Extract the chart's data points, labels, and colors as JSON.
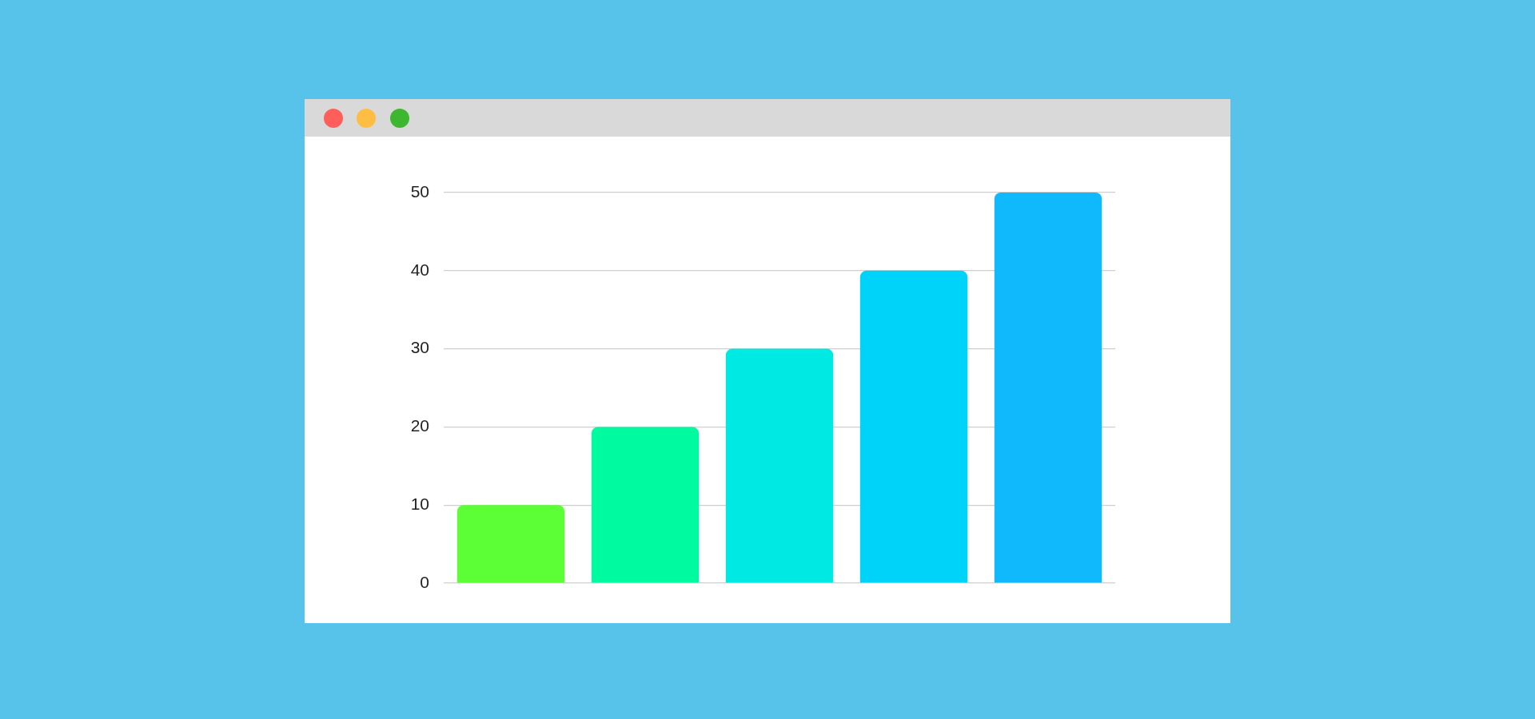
{
  "chart_data": {
    "type": "bar",
    "categories": [
      null,
      null,
      null,
      null,
      null
    ],
    "values": [
      10,
      20,
      30,
      40,
      50
    ],
    "colors": [
      "#5cff36",
      "#00fa9f",
      "#00e9e3",
      "#00d3f9",
      "#10b9fc"
    ],
    "ylim": [
      0,
      50
    ],
    "yticks": [
      0,
      10,
      20,
      30,
      40,
      50
    ],
    "grid": "y",
    "legend": false,
    "tick_labels": "y"
  }
}
